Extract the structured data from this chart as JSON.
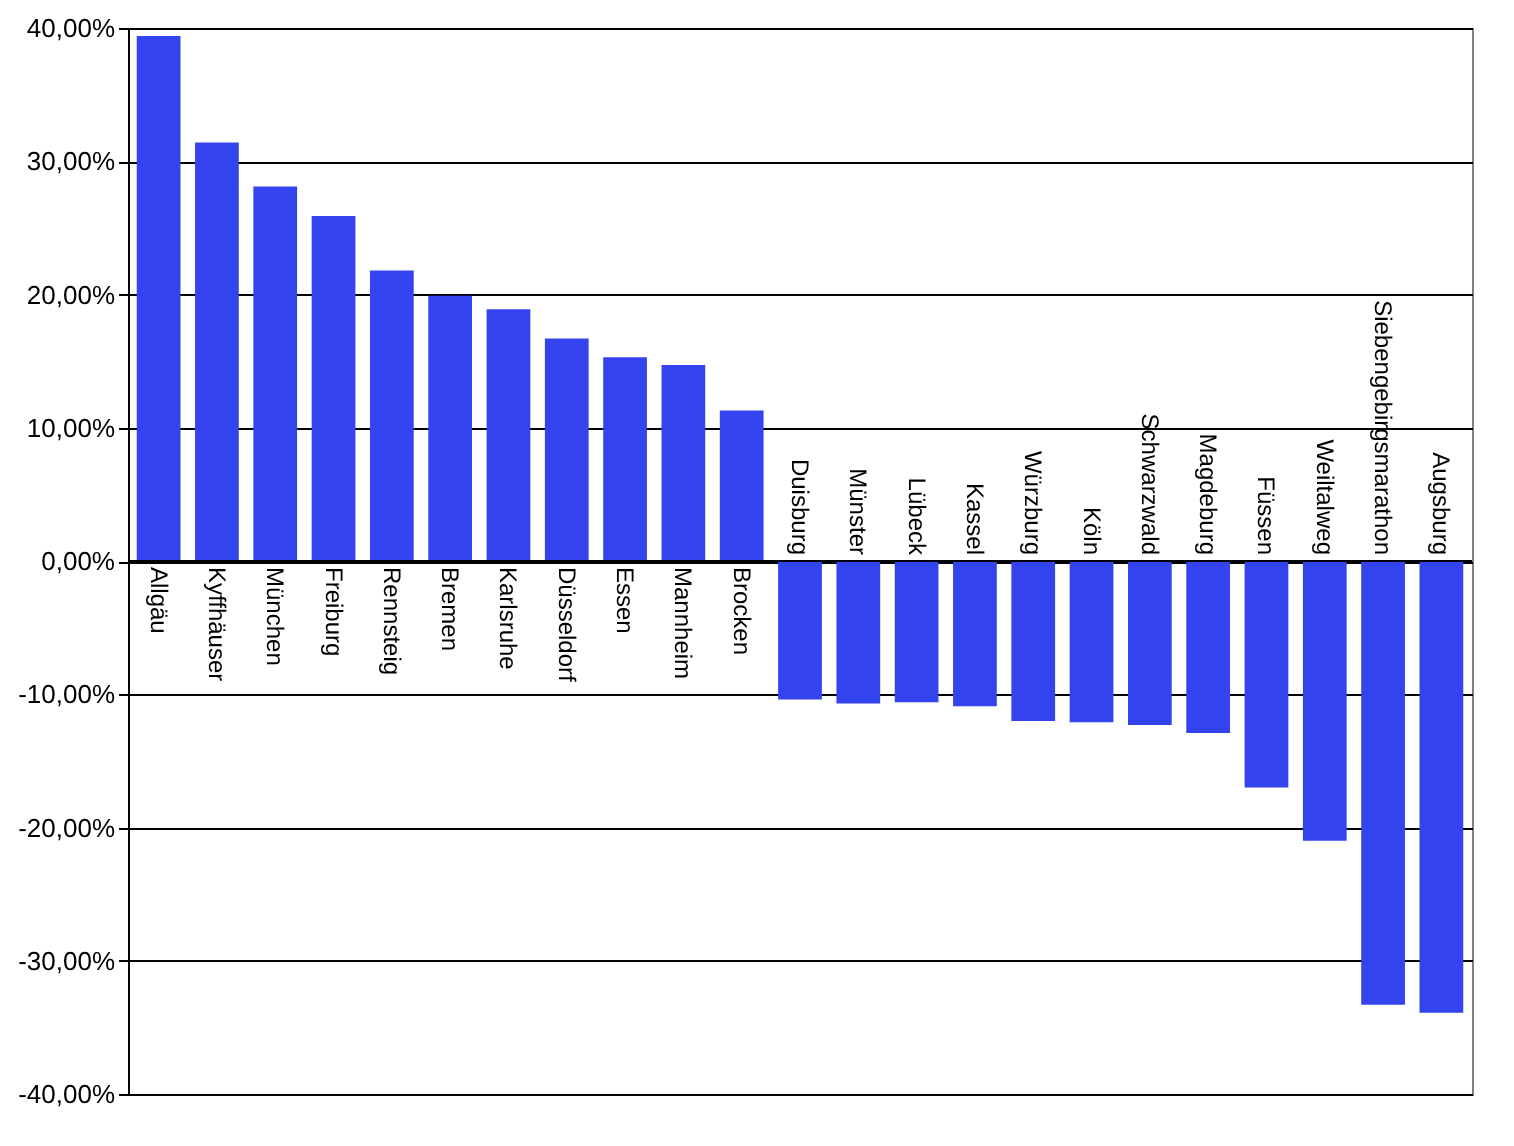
{
  "chart_data": {
    "type": "bar",
    "categories": [
      "Allgäu",
      "Kyffhäuser",
      "München",
      "Freiburg",
      "Rennsteig",
      "Bremen",
      "Karlsruhe",
      "Düsseldorf",
      "Essen",
      "Mannheim",
      "Brocken",
      "Duisburg",
      "Münster",
      "Lübeck",
      "Kassel",
      "Würzburg",
      "Köln",
      "Schwarzwald",
      "Magdeburg",
      "Füssen",
      "Weiltalweg",
      "Siebengebirgsmarathon",
      "Augsburg"
    ],
    "values": [
      39.4,
      31.4,
      28.1,
      25.9,
      21.8,
      19.9,
      18.9,
      16.7,
      15.3,
      14.7,
      11.3,
      -10.4,
      -10.7,
      -10.6,
      -10.9,
      -12.0,
      -12.1,
      -12.3,
      -12.9,
      -17.0,
      -21.0,
      -33.3,
      -33.9
    ],
    "color": "#3344ee",
    "ylim": [
      -40,
      40
    ],
    "yticks": [
      {
        "value": -40,
        "label": "-40,00%"
      },
      {
        "value": -30,
        "label": "-30,00%"
      },
      {
        "value": -20,
        "label": "-20,00%"
      },
      {
        "value": -10,
        "label": "-10,00%"
      },
      {
        "value": 0,
        "label": "0,00%"
      },
      {
        "value": 10,
        "label": "10,00%"
      },
      {
        "value": 20,
        "label": "20,00%"
      },
      {
        "value": 30,
        "label": "30,00%"
      },
      {
        "value": 40,
        "label": "40,00%"
      }
    ],
    "grid": "y"
  }
}
